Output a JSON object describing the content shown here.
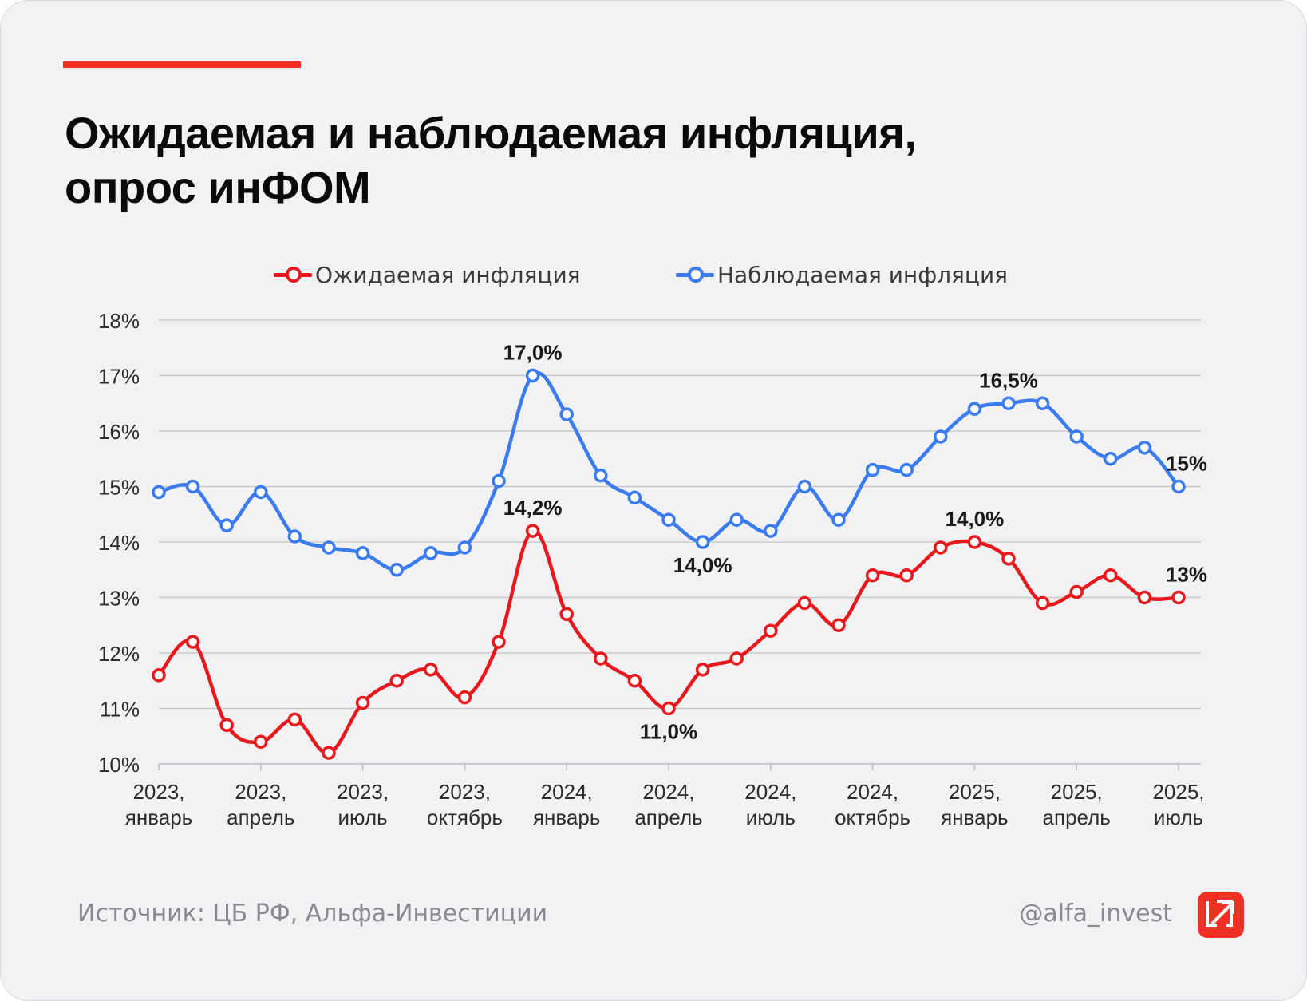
{
  "title_lines": [
    "Ожидаемая и наблюдаемая инфляция,",
    "опрос инФОМ"
  ],
  "source": "Источник: ЦБ РФ, Альфа-Инвестиции",
  "handle": "@alfa_invest",
  "colors": {
    "accent": "#ef3124",
    "expected": "#e8191d",
    "observed": "#3b7bf0",
    "grid": "#c9c9cd"
  },
  "chart_data": {
    "type": "line",
    "ylim": [
      10,
      18
    ],
    "y_ticks": [
      {
        "value": 10,
        "label": "10%"
      },
      {
        "value": 11,
        "label": "11%"
      },
      {
        "value": 12,
        "label": "12%"
      },
      {
        "value": 13,
        "label": "13%"
      },
      {
        "value": 14,
        "label": "14%"
      },
      {
        "value": 15,
        "label": "15%"
      },
      {
        "value": 16,
        "label": "16%"
      },
      {
        "value": 17,
        "label": "17%"
      },
      {
        "value": 18,
        "label": "18%"
      }
    ],
    "x_start": "2023-01",
    "x_end": "2025-07",
    "x_ticks": [
      {
        "x": "2023-01",
        "line1": "2023,",
        "line2": "январь"
      },
      {
        "x": "2023-04",
        "line1": "2023,",
        "line2": "апрель"
      },
      {
        "x": "2023-07",
        "line1": "2023,",
        "line2": "июль"
      },
      {
        "x": "2023-10",
        "line1": "2023,",
        "line2": "октябрь"
      },
      {
        "x": "2024-01",
        "line1": "2024,",
        "line2": "январь"
      },
      {
        "x": "2024-04",
        "line1": "2024,",
        "line2": "апрель"
      },
      {
        "x": "2024-07",
        "line1": "2024,",
        "line2": "июль"
      },
      {
        "x": "2024-10",
        "line1": "2024,",
        "line2": "октябрь"
      },
      {
        "x": "2025-01",
        "line1": "2025,",
        "line2": "январь"
      },
      {
        "x": "2025-04",
        "line1": "2025,",
        "line2": "апрель"
      },
      {
        "x": "2025-07",
        "line1": "2025,",
        "line2": "июль"
      }
    ],
    "x": [
      "2023-01",
      "2023-02",
      "2023-03",
      "2023-04",
      "2023-05",
      "2023-06",
      "2023-07",
      "2023-08",
      "2023-09",
      "2023-10",
      "2023-11",
      "2023-12",
      "2024-01",
      "2024-02",
      "2024-03",
      "2024-04",
      "2024-05",
      "2024-06",
      "2024-07",
      "2024-08",
      "2024-09",
      "2024-10",
      "2024-11",
      "2024-12",
      "2025-01",
      "2025-02",
      "2025-03",
      "2025-04",
      "2025-05",
      "2025-06",
      "2025-07"
    ],
    "series": [
      {
        "name": "Ожидаемая инфляция",
        "values": [
          11.6,
          12.2,
          10.7,
          10.4,
          10.8,
          10.2,
          11.1,
          11.5,
          11.7,
          11.2,
          12.2,
          14.2,
          12.7,
          11.9,
          11.5,
          11.0,
          11.7,
          11.9,
          12.4,
          12.9,
          12.5,
          13.4,
          13.4,
          13.9,
          14.0,
          13.7,
          12.9,
          13.1,
          13.4,
          13.0,
          13.0
        ],
        "labels": [
          {
            "index": 11,
            "text": "14,2%",
            "pos": "above"
          },
          {
            "index": 15,
            "text": "11,0%",
            "pos": "below"
          },
          {
            "index": 24,
            "text": "14,0%",
            "pos": "above"
          },
          {
            "index": 30,
            "text": "13%",
            "pos": "above"
          }
        ]
      },
      {
        "name": "Наблюдаемая инфляция",
        "values": [
          14.9,
          15.0,
          14.3,
          14.9,
          14.1,
          13.9,
          13.8,
          13.5,
          13.8,
          13.9,
          15.1,
          17.0,
          16.3,
          15.2,
          14.8,
          14.4,
          14.0,
          14.4,
          14.2,
          15.0,
          14.4,
          15.3,
          15.3,
          15.9,
          16.4,
          16.5,
          16.5,
          15.9,
          15.5,
          15.7,
          15.0
        ],
        "labels": [
          {
            "index": 11,
            "text": "17,0%",
            "pos": "above"
          },
          {
            "index": 16,
            "text": "14,0%",
            "pos": "below"
          },
          {
            "index": 25,
            "text": "16,5%",
            "pos": "above"
          },
          {
            "index": 30,
            "text": "15%",
            "pos": "above"
          }
        ]
      }
    ]
  }
}
